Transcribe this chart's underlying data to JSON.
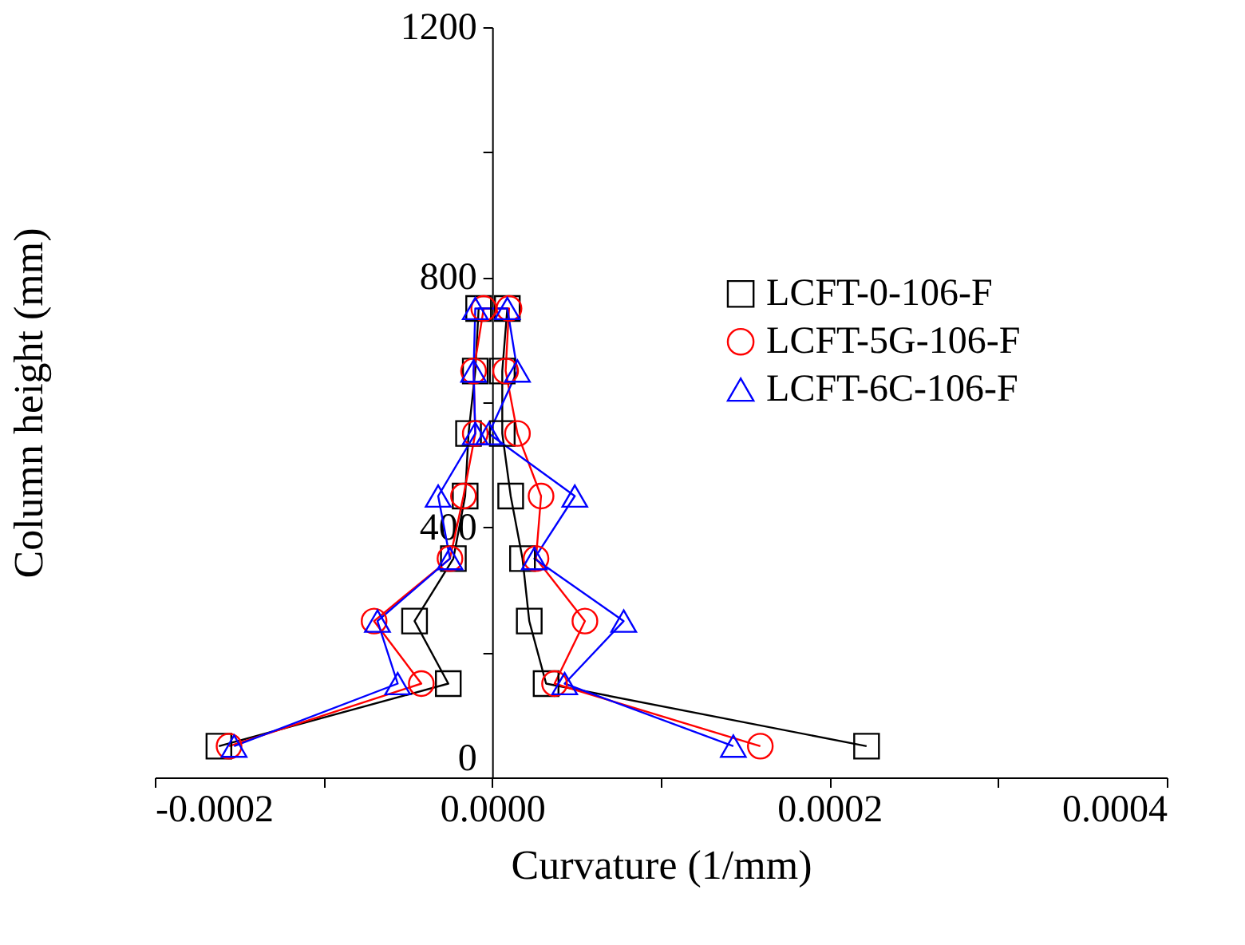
{
  "chart_data": {
    "type": "line",
    "xlabel": "Curvature (1/mm)",
    "ylabel": "Column height (mm)",
    "xlim": [
      -0.0002,
      0.0004
    ],
    "ylim": [
      0,
      1200
    ],
    "xticks": [
      {
        "value": -0.0002,
        "label": "-0.0002"
      },
      {
        "value": -0.0001,
        "label": null
      },
      {
        "value": 0,
        "label": "0.0000"
      },
      {
        "value": 0.0001,
        "label": null
      },
      {
        "value": 0.0002,
        "label": "0.0002"
      },
      {
        "value": 0.0003,
        "label": null
      },
      {
        "value": 0.0004,
        "label": "0.0004"
      }
    ],
    "yticks": [
      0,
      {
        "value": 200,
        "label": null
      },
      400,
      {
        "value": 600,
        "label": null
      },
      800,
      {
        "value": 1000,
        "label": null
      },
      1200
    ],
    "grid": false,
    "legend": "right",
    "line_style": "solid",
    "series": [
      {
        "name": "LCFT-0-106-F",
        "color": "#000000",
        "marker": "square",
        "x": [
          -0.000162,
          -2.6e-05,
          -4.6e-05,
          -2.3e-05,
          -1.6e-05,
          -1.4e-05,
          -1e-05,
          -8e-06,
          9e-06,
          6e-06,
          6e-06,
          1.1e-05,
          1.8e-05,
          2.2e-05,
          3.2e-05,
          0.000222
        ],
        "values": [
          50,
          150,
          250,
          350,
          450,
          550,
          650,
          750,
          750,
          650,
          550,
          450,
          350,
          250,
          150,
          50
        ]
      },
      {
        "name": "LCFT-5G-106-F",
        "color": "#ff0000",
        "marker": "circle",
        "x": [
          -0.000156,
          -4.2e-05,
          -7e-05,
          -2.5e-05,
          -1.7e-05,
          -1e-05,
          -1.1e-05,
          -5e-06,
          1e-05,
          8e-06,
          1.5e-05,
          2.9e-05,
          2.6e-05,
          5.5e-05,
          3.7e-05,
          0.000159
        ],
        "values": [
          50,
          150,
          250,
          350,
          450,
          550,
          650,
          750,
          750,
          650,
          550,
          450,
          350,
          250,
          150,
          50
        ]
      },
      {
        "name": "LCFT-6C-106-F",
        "color": "#0000ff",
        "marker": "triangle",
        "x": [
          -0.000153,
          -5.6e-05,
          -6.8e-05,
          -2.5e-05,
          -3.2e-05,
          -1e-05,
          -1.1e-05,
          -1e-05,
          9e-06,
          1.5e-05,
          -2e-06,
          4.9e-05,
          2.5e-05,
          7.8e-05,
          4.3e-05,
          0.000143
        ],
        "values": [
          50,
          150,
          250,
          350,
          450,
          550,
          650,
          750,
          750,
          650,
          550,
          450,
          350,
          250,
          150,
          50
        ]
      }
    ]
  }
}
